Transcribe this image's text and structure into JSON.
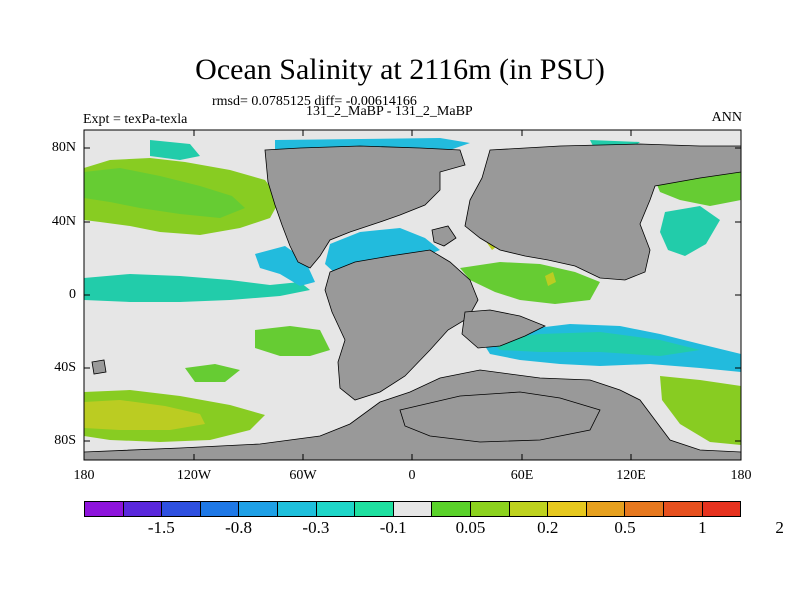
{
  "title": "Ocean Salinity at 2116m (in PSU)",
  "stats": "rmsd= 0.0785125 diff= -0.00614166",
  "experiment_ids": "131_2_MaBP - 131_2_MaBP",
  "expt_label": "Expt = texPa-texla",
  "season": "ANN",
  "colors": {
    "land": "#999999",
    "neutral": "#e6e6e6",
    "light_green": "#66cc33",
    "green": "#88cc22",
    "yellow_green": "#bbcc22",
    "cyan": "#22bbdd",
    "teal": "#22ccaa",
    "coast": "#000000"
  },
  "axes": {
    "lat_labels": [
      "80N",
      "40N",
      "0",
      "40S",
      "80S"
    ],
    "lon_labels": [
      "180",
      "120W",
      "60W",
      "0",
      "60E",
      "120E",
      "180"
    ]
  },
  "colorbar": {
    "colors": [
      "#8e14dc",
      "#5a28dc",
      "#2e50e0",
      "#1e78e6",
      "#1ea0e6",
      "#1ec0dc",
      "#1ed6c8",
      "#1ee0a0",
      "#e6e6e6",
      "#5ad22a",
      "#8cd21e",
      "#bed21e",
      "#e6c81e",
      "#e6a01e",
      "#e6781e",
      "#e6501e",
      "#e6321e"
    ],
    "labels": [
      "-1.5",
      "-0.8",
      "-0.3",
      "-0.1",
      "0.05",
      "0.2",
      "0.5",
      "1",
      "2"
    ]
  }
}
